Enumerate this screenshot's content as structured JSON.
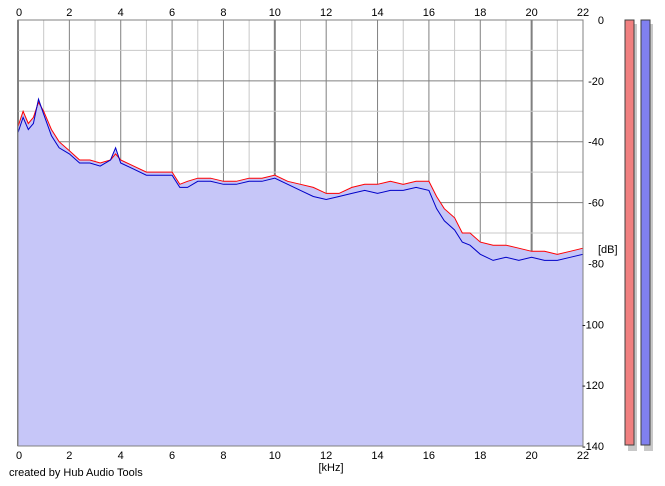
{
  "chart_data": {
    "type": "area",
    "title": "",
    "xlabel": "[kHz]",
    "ylabel": "[dB]",
    "xlim": [
      0,
      22
    ],
    "ylim": [
      -140,
      0
    ],
    "x_ticks": [
      "0",
      "2",
      "4",
      "6",
      "8",
      "10",
      "12",
      "14",
      "16",
      "18",
      "20",
      "22"
    ],
    "y_ticks": [
      "0",
      "-20",
      "-40",
      "-60",
      "-80",
      "-100",
      "-120",
      "-140"
    ],
    "grid": true,
    "colors": {
      "fill": "#c6c6f8",
      "left_channel": "#ff0000",
      "right_channel": "#0000c8",
      "grid_minor": "#c8c8c8",
      "grid_major": "#808080",
      "meter_left": "#f08080",
      "meter_right": "#8080f0"
    },
    "series": [
      {
        "x": [
          0,
          0.2,
          0.4,
          0.6,
          0.8,
          1,
          1.3,
          1.6,
          2,
          2.4,
          2.8,
          3.2,
          3.6,
          3.8,
          4,
          4.5,
          5,
          5.5,
          6,
          6.3,
          6.6,
          7,
          7.5,
          8,
          8.5,
          9,
          9.5,
          10,
          10.5,
          11,
          11.5,
          12,
          12.5,
          13,
          13.5,
          14,
          14.5,
          15,
          15.5,
          16,
          16.3,
          16.6,
          17,
          17.3,
          17.6,
          18,
          18.5,
          19,
          19.5,
          20,
          20.5,
          21,
          21.5,
          22
        ],
        "values": [
          -35,
          -30,
          -34,
          -32,
          -27,
          -30,
          -36,
          -40,
          -43,
          -46,
          -46,
          -47,
          -46,
          -44,
          -46,
          -48,
          -50,
          -50,
          -50,
          -54,
          -53,
          -52,
          -52,
          -53,
          -53,
          -52,
          -52,
          -51,
          -53,
          -54,
          -55,
          -57,
          -57,
          -55,
          -54,
          -54,
          -53,
          -54,
          -53,
          -53,
          -58,
          -62,
          -65,
          -70,
          -70,
          -73,
          -74,
          -74,
          -75,
          -76,
          -76,
          -77,
          -76,
          -75
        ]
      },
      {
        "x": [
          0,
          0.2,
          0.4,
          0.6,
          0.8,
          1,
          1.3,
          1.6,
          2,
          2.4,
          2.8,
          3.2,
          3.6,
          3.8,
          4,
          4.5,
          5,
          5.5,
          6,
          6.3,
          6.6,
          7,
          7.5,
          8,
          8.5,
          9,
          9.5,
          10,
          10.5,
          11,
          11.5,
          12,
          12.5,
          13,
          13.5,
          14,
          14.5,
          15,
          15.5,
          16,
          16.3,
          16.6,
          17,
          17.3,
          17.6,
          18,
          18.5,
          19,
          19.5,
          20,
          20.5,
          21,
          21.5,
          22
        ],
        "values": [
          -37,
          -32,
          -36,
          -34,
          -26,
          -31,
          -38,
          -42,
          -44,
          -47,
          -47,
          -48,
          -46,
          -42,
          -47,
          -49,
          -51,
          -51,
          -51,
          -55,
          -55,
          -53,
          -53,
          -54,
          -54,
          -53,
          -53,
          -52,
          -54,
          -56,
          -58,
          -59,
          -58,
          -57,
          -56,
          -57,
          -56,
          -56,
          -55,
          -56,
          -62,
          -66,
          -69,
          -73,
          -74,
          -77,
          -79,
          -78,
          -79,
          -78,
          -79,
          -79,
          -78,
          -77
        ]
      }
    ],
    "footer_text": "created by Hub Audio Tools"
  }
}
